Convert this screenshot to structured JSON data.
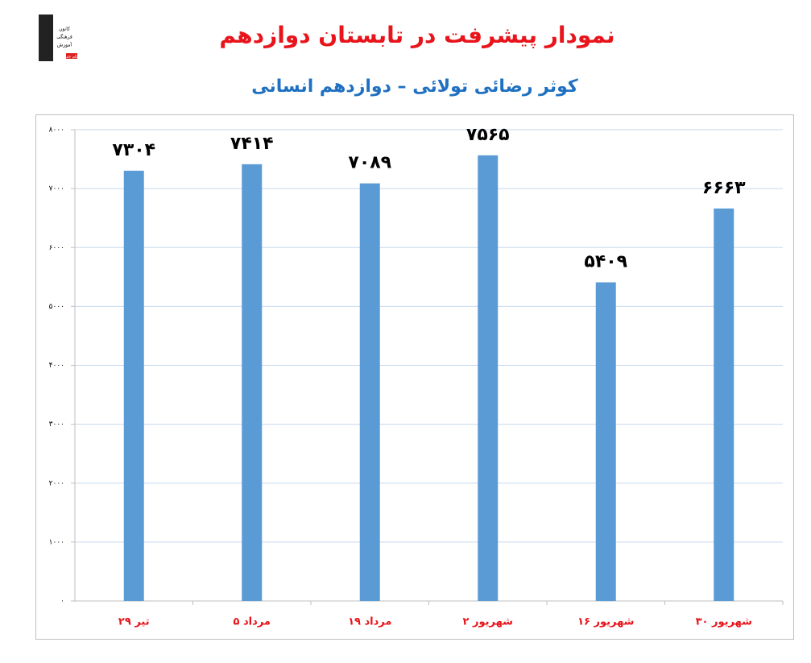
{
  "logo": {
    "lines": [
      "کانون",
      "فرهنگی",
      "آموزش",
      "قلم چی"
    ]
  },
  "chart_data": {
    "type": "bar",
    "title": "نمودار پیشرفت در تابستان دوازدهم",
    "subtitle": "کوثر رضائی تولائی – دوازدهم انسانی",
    "categories": [
      "۲۹ تیر",
      "۵ مرداد",
      "۱۹ مرداد",
      "۲ شهریور",
      "۱۶ شهریور",
      "۳۰ شهریور"
    ],
    "values": [
      7304,
      7414,
      7089,
      7565,
      5409,
      6663
    ],
    "value_labels": [
      "۷۳۰۴",
      "۷۴۱۴",
      "۷۰۸۹",
      "۷۵۶۵",
      "۵۴۰۹",
      "۶۶۶۳"
    ],
    "color": "#5b9bd5",
    "ylim": [
      0,
      8000
    ],
    "yticks": [
      {
        "value": 0,
        "label": "۰"
      },
      {
        "value": 1000,
        "label": "۱۰۰۰"
      },
      {
        "value": 2000,
        "label": "۲۰۰۰"
      },
      {
        "value": 3000,
        "label": "۳۰۰۰"
      },
      {
        "value": 4000,
        "label": "۴۰۰۰"
      },
      {
        "value": 5000,
        "label": "۵۰۰۰"
      },
      {
        "value": 6000,
        "label": "۶۰۰۰"
      },
      {
        "value": 7000,
        "label": "۷۰۰۰"
      },
      {
        "value": 8000,
        "label": "۸۰۰۰"
      }
    ],
    "grid": true
  }
}
